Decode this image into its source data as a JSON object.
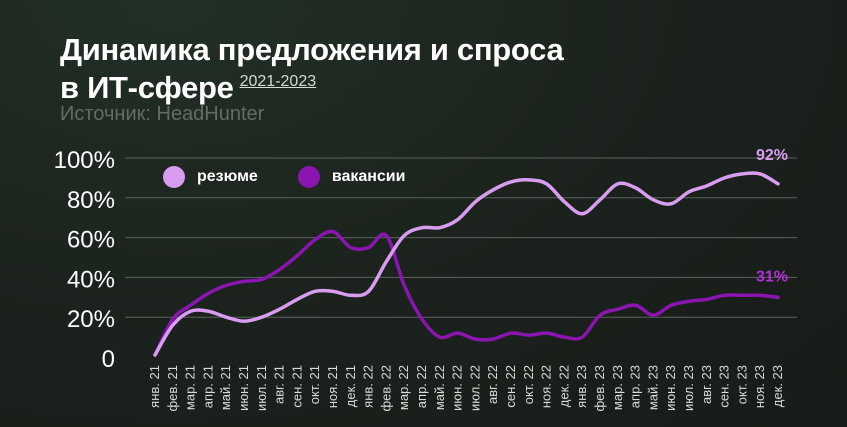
{
  "title": {
    "line1": "Динамика предложения и спроса",
    "line2": "в ИТ-сфере",
    "years": "2021-2023"
  },
  "source": "Источник: HeadHunter",
  "colors": {
    "resume": "#d89cf0",
    "vacancies": "#8a15b0",
    "grid": "#5a625c",
    "text": "#ffffff"
  },
  "chart_data": {
    "type": "line",
    "categories": [
      "янв. 21",
      "фев. 21",
      "мар. 21",
      "апр. 21",
      "май. 21",
      "июн. 21",
      "июл. 21",
      "авг. 21",
      "сен. 21",
      "окт. 21",
      "ноя. 21",
      "дек. 21",
      "янв. 22",
      "фев. 22",
      "мар. 22",
      "апр. 22",
      "май. 22",
      "июн. 22",
      "июл. 22",
      "авг. 22",
      "сен. 22",
      "окт. 22",
      "ноя. 22",
      "дек. 22",
      "янв. 23",
      "фев. 23",
      "мар. 23",
      "апр. 23",
      "май. 23",
      "июн. 23",
      "июл. 23",
      "авг. 23",
      "сен. 23",
      "окт. 23",
      "ноя. 23",
      "дек. 23"
    ],
    "series": [
      {
        "name": "резюме",
        "values": [
          1,
          16,
          23,
          23,
          20,
          18,
          20,
          24,
          29,
          33,
          33,
          31,
          33,
          48,
          61,
          65,
          65,
          69,
          78,
          84,
          88,
          89,
          87,
          78,
          72,
          79,
          87,
          85,
          79,
          77,
          83,
          86,
          90,
          92,
          92,
          87
        ]
      },
      {
        "name": "вакансии",
        "values": [
          1,
          19,
          26,
          32,
          36,
          38,
          39,
          44,
          51,
          59,
          63,
          55,
          55,
          61,
          36,
          19,
          10,
          12,
          9,
          9,
          12,
          11,
          12,
          10,
          10,
          21,
          24,
          26,
          21,
          26,
          28,
          29,
          31,
          31,
          31,
          30
        ]
      }
    ],
    "annotations": [
      {
        "series": "резюме",
        "label": "92%"
      },
      {
        "series": "вакансии",
        "label": "31%"
      }
    ],
    "yticks": [
      "0",
      "20%",
      "40%",
      "60%",
      "80%",
      "100%"
    ],
    "ylim": [
      0,
      100
    ],
    "legend": "top-left",
    "grid": true
  }
}
